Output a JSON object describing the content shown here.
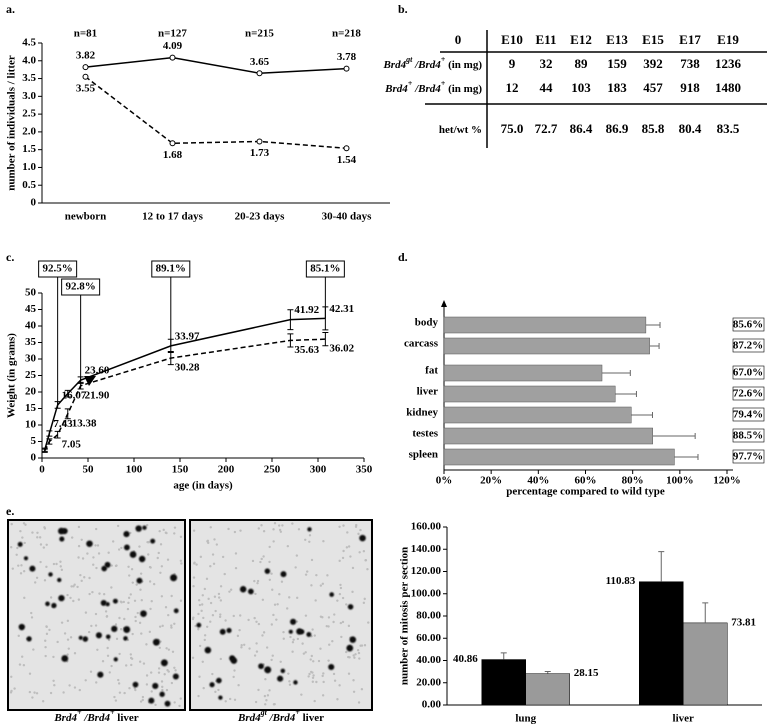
{
  "panel_labels": [
    "a.",
    "b.",
    "c.",
    "d.",
    "e."
  ],
  "chart_data": [
    {
      "type": "line",
      "ylabel": "number of individuals / litter",
      "categories": [
        "newborn",
        "12 to 17 days",
        "20-23 days",
        "30-40 days"
      ],
      "annotations": [
        "n=81",
        "n=127",
        "n=215",
        "n=218"
      ],
      "markers": true,
      "series": [
        {
          "color": "#000000",
          "dash": false,
          "values": [
            3.82,
            4.09,
            3.65,
            3.78
          ]
        },
        {
          "color": "#000000",
          "dash": true,
          "values": [
            3.55,
            1.68,
            1.73,
            1.54
          ]
        }
      ],
      "ylim": [
        0,
        4.5
      ],
      "yticks": [
        0,
        0.5,
        {
          "value": 1,
          "label": "1.0"
        },
        1.5,
        {
          "value": 2,
          "label": "2.0"
        },
        2.5,
        {
          "value": 3,
          "label": "3.0"
        },
        3.5,
        {
          "value": 4,
          "label": "4.0"
        },
        4.5
      ]
    },
    {
      "type": "line",
      "xlabel": "age (in days)",
      "ylabel": "Weight (in grams)",
      "x": [
        3,
        8,
        17,
        28,
        42,
        140,
        270,
        308
      ],
      "series": [
        {
          "color": "#000000",
          "dash": false,
          "values": [
            2.5,
            7.43,
            16.07,
            19.5,
            23.6,
            33.97,
            41.92,
            42.31
          ],
          "value_labels": [
            null,
            "7.43",
            "16.07",
            null,
            "23.60",
            "33.97",
            "41.92",
            "42.31"
          ],
          "errors": [
            0.5,
            0.8,
            1,
            1,
            1,
            2,
            3,
            3.5
          ]
        },
        {
          "color": "#000000",
          "dash": true,
          "values": [
            2.2,
            5.0,
            7.05,
            13.38,
            21.9,
            30.28,
            35.63,
            36.02
          ],
          "value_labels": [
            null,
            null,
            "7.05",
            "13.38",
            "21.90",
            "30.28",
            "35.63",
            "36.02"
          ],
          "errors": [
            0.5,
            0.8,
            1,
            1.5,
            1,
            2,
            2,
            2
          ]
        }
      ],
      "annotations": [
        {
          "text": "92.5%",
          "x": 17
        },
        {
          "text": "92.8%",
          "x": 42
        },
        {
          "text": "89.1%",
          "x": 140
        },
        {
          "text": "85.1%",
          "x": 308
        }
      ],
      "xlim": [
        0,
        350
      ],
      "xticks": [
        0,
        50,
        100,
        150,
        200,
        250,
        300,
        350
      ],
      "ylim": [
        0,
        50
      ],
      "yticks": [
        0,
        5,
        10,
        15,
        20,
        25,
        30,
        35,
        40,
        45,
        50
      ]
    },
    {
      "type": "barh",
      "xlabel": "percentage compared to wild type",
      "categories": [
        "body",
        "carcass",
        "fat",
        "liver",
        "kidney",
        "testes",
        "spleen"
      ],
      "values": [
        85.6,
        87.2,
        67.0,
        72.6,
        79.4,
        88.5,
        97.7
      ],
      "value_labels": [
        "85.6%",
        "87.2%",
        "67.0%",
        "72.6%",
        "79.4%",
        "88.5%",
        "97.7%"
      ],
      "errors": [
        6,
        4,
        12,
        9,
        9,
        18,
        10
      ],
      "color": "#a0a0a0",
      "xlim": [
        0,
        120
      ],
      "xticks": [
        {
          "value": 0,
          "label": "0%"
        },
        {
          "value": 20,
          "label": "20%"
        },
        {
          "value": 40,
          "label": "40%"
        },
        {
          "value": 60,
          "label": "60%"
        },
        {
          "value": 80,
          "label": "80%"
        },
        {
          "value": 100,
          "label": "100%"
        },
        {
          "value": 120,
          "label": "120%"
        }
      ]
    },
    {
      "type": "bar",
      "ylabel": "number of mitosis per section",
      "categories": [
        "lung",
        "liver"
      ],
      "series": [
        {
          "color": "#000000",
          "values": [
            40.86,
            110.83
          ],
          "errors": [
            6,
            27
          ]
        },
        {
          "color": "#9a9a9a",
          "values": [
            28.15,
            73.81
          ],
          "errors": [
            2,
            18
          ]
        }
      ],
      "ylim": [
        0,
        160
      ],
      "yticks": [
        {
          "value": 0,
          "label": "0.00"
        },
        {
          "value": 20,
          "label": "20.00"
        },
        {
          "value": 40,
          "label": "40.00"
        },
        {
          "value": 60,
          "label": "60.00"
        },
        {
          "value": 80,
          "label": "80.00"
        },
        {
          "value": 100,
          "label": "100.00"
        },
        {
          "value": 120,
          "label": "120.00"
        },
        {
          "value": 140,
          "label": "140.00"
        },
        {
          "value": 160,
          "label": "160.00"
        }
      ]
    }
  ],
  "table": {
    "header": [
      "0",
      "E10",
      "E11",
      "E12",
      "E13",
      "E15",
      "E17",
      "E19"
    ],
    "rows": [
      {
        "label": [
          "Brd4",
          "gt",
          " /Brd4",
          "+",
          " (in mg)"
        ],
        "cells": [
          9,
          32,
          89,
          159,
          392,
          738,
          1236
        ]
      },
      {
        "label": [
          "Brd4",
          "+",
          " /Brd4",
          "+",
          " (in mg)"
        ],
        "cells": [
          12,
          44,
          103,
          183,
          457,
          918,
          1480
        ]
      },
      {
        "label": [
          "het/wt %"
        ],
        "cells": [
          "75.0",
          "72.7",
          "86.4",
          "86.9",
          "85.8",
          "80.4",
          "83.5"
        ]
      }
    ]
  },
  "images": [
    {
      "caption": [
        "Brd4",
        "+",
        " /Brd4",
        "+",
        " liver"
      ]
    },
    {
      "caption": [
        "Brd4",
        "gt",
        " /Brd4",
        "+",
        " liver"
      ]
    }
  ]
}
